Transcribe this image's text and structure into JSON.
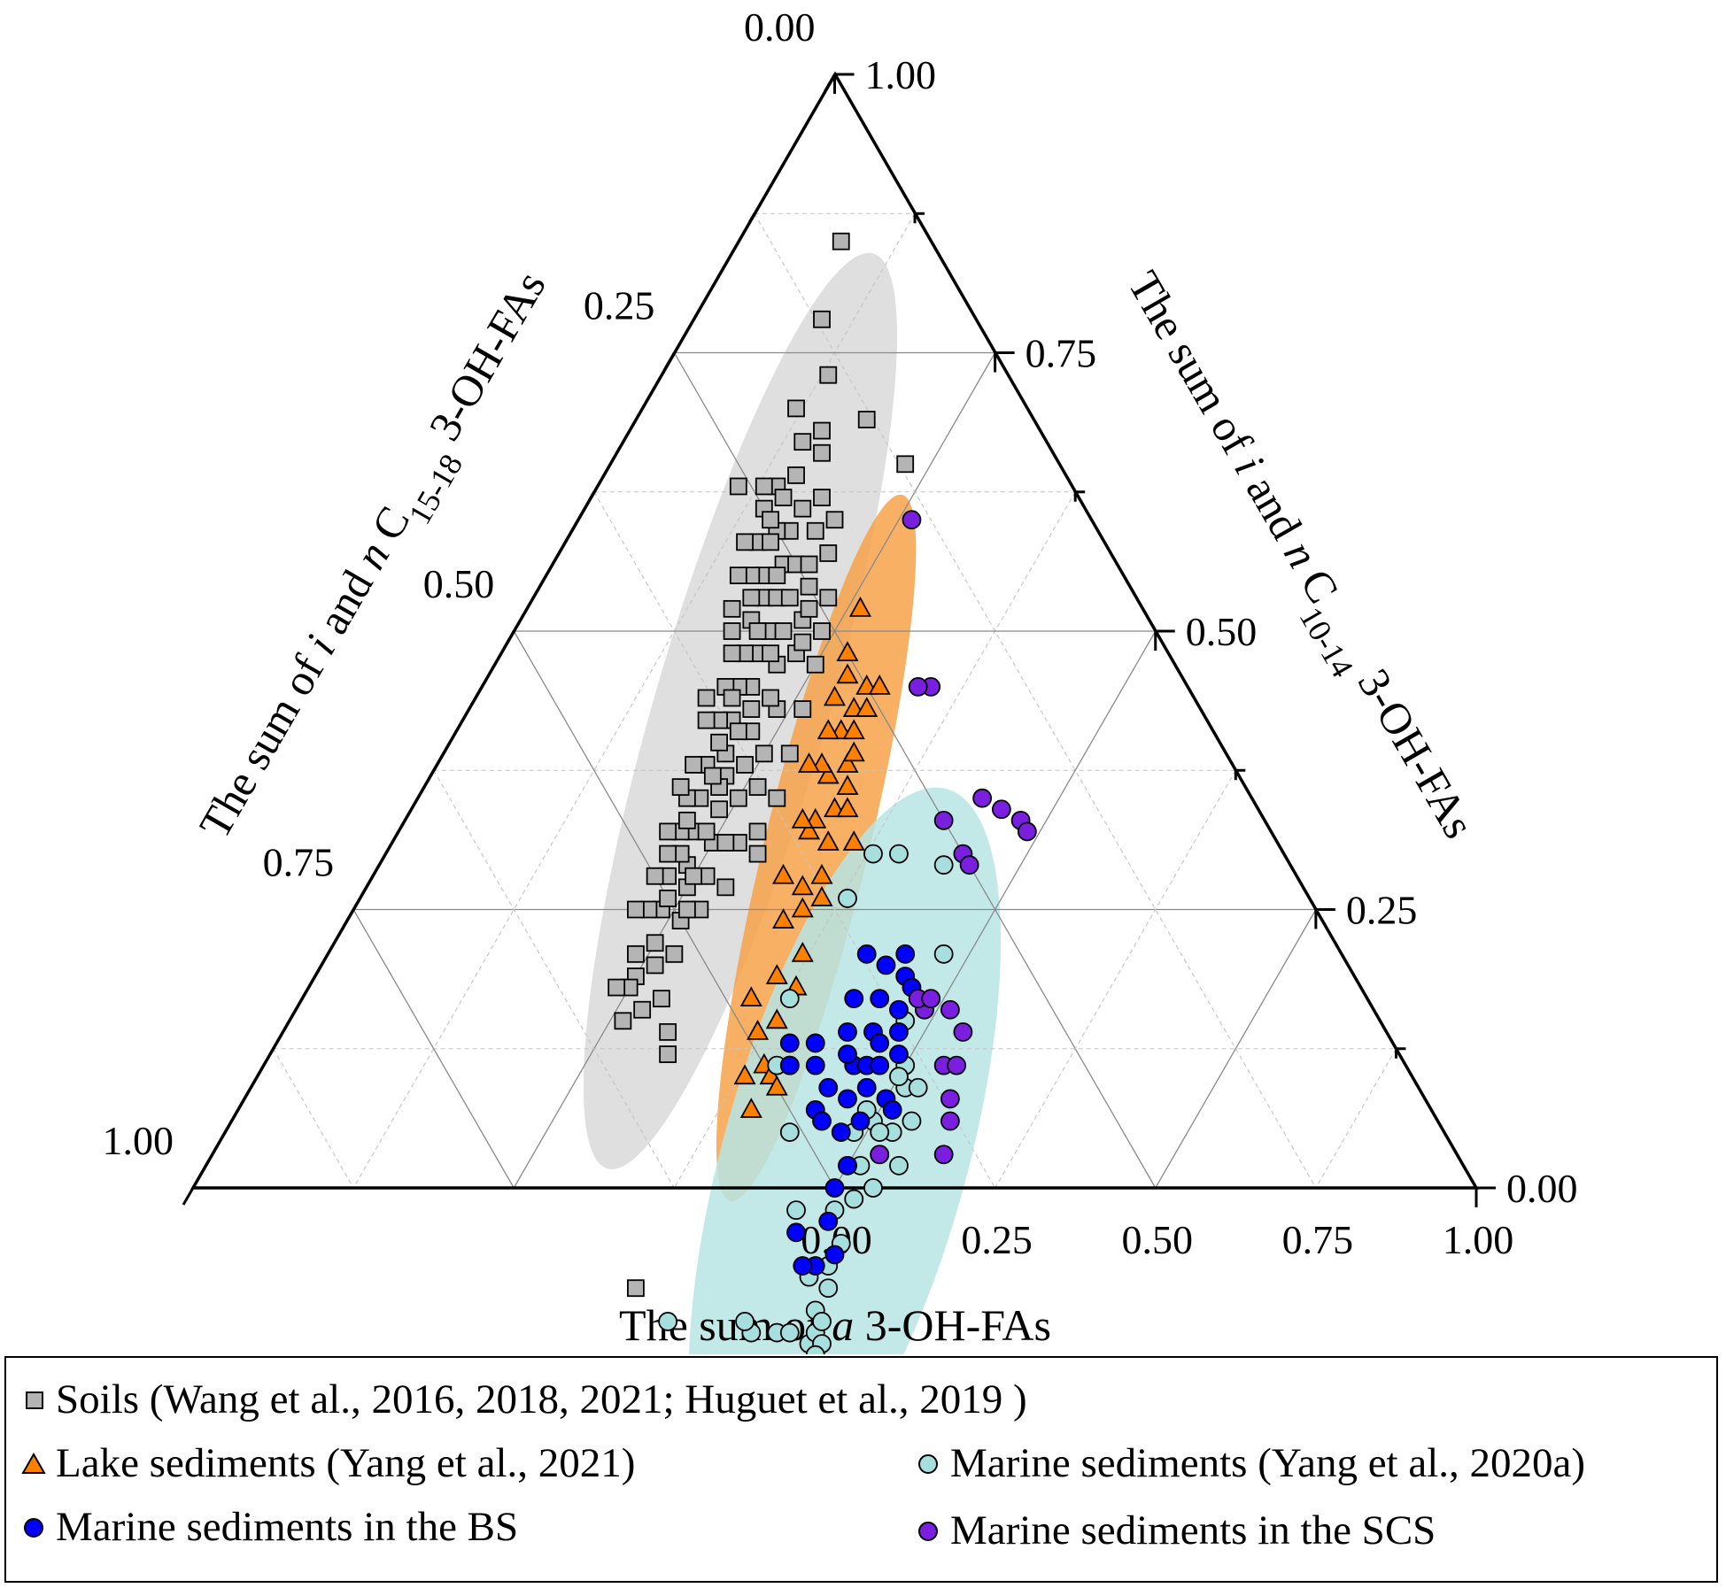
{
  "chart_data": {
    "type": "scatter",
    "subtype": "ternary",
    "axes": {
      "bottom": {
        "label_parts": [
          {
            "t": "The sum of "
          },
          {
            "t": "a",
            "style": "italic"
          },
          {
            "t": " 3-OH-FAs"
          }
        ],
        "ticks": [
          "0.00",
          "0.25",
          "0.50",
          "0.75",
          "1.00"
        ],
        "range": [
          0,
          1
        ]
      },
      "left": {
        "label_parts": [
          {
            "t": "The sum of "
          },
          {
            "t": "i",
            "style": "italic"
          },
          {
            "t": " and "
          },
          {
            "t": "n",
            "style": "italic"
          },
          {
            "t": " C"
          },
          {
            "t": "15-18",
            "style": "sub"
          },
          {
            "t": " 3-OH-FAs"
          }
        ],
        "ticks": [
          "0.00",
          "0.25",
          "0.50",
          "0.75",
          "1.00"
        ],
        "range": [
          0,
          1
        ]
      },
      "right": {
        "label_parts": [
          {
            "t": "The sum of "
          },
          {
            "t": "i",
            "style": "italic"
          },
          {
            "t": " and "
          },
          {
            "t": "n",
            "style": "italic"
          },
          {
            "t": " C"
          },
          {
            "t": "10-14",
            "style": "sub"
          },
          {
            "t": " 3-OH-FAs"
          }
        ],
        "ticks": [
          "0.00",
          "0.25",
          "0.50",
          "0.75",
          "1.00"
        ],
        "range": [
          0,
          1
        ]
      }
    },
    "grid": true,
    "legend_position": "bottom",
    "series": [
      {
        "name": "Soils (Wang et al., 2016, 2018, 2021; Huguet et al., 2019 )",
        "marker": "square",
        "color": "#b4b4b4",
        "ellipse_color": "#d9d9d9",
        "points": [
          [
            0.08,
            0.07
          ],
          [
            0.13,
            0.14
          ],
          [
            0.16,
            0.18
          ],
          [
            0.15,
            0.21
          ],
          [
            0.14,
            0.23
          ],
          [
            0.14,
            0.25
          ],
          [
            0.17,
            0.24
          ],
          [
            0.18,
            0.26
          ],
          [
            0.19,
            0.25
          ],
          [
            0.17,
            0.28
          ],
          [
            0.15,
            0.27
          ],
          [
            0.18,
            0.29
          ],
          [
            0.19,
            0.28
          ],
          [
            0.2,
            0.3
          ],
          [
            0.21,
            0.29
          ],
          [
            0.18,
            0.31
          ],
          [
            0.16,
            0.29
          ],
          [
            0.17,
            0.3
          ],
          [
            0.2,
            0.32
          ],
          [
            0.22,
            0.31
          ],
          [
            0.19,
            0.33
          ],
          [
            0.21,
            0.34
          ],
          [
            0.18,
            0.34
          ],
          [
            0.2,
            0.35
          ],
          [
            0.22,
            0.35
          ],
          [
            0.19,
            0.36
          ],
          [
            0.21,
            0.37
          ],
          [
            0.23,
            0.36
          ],
          [
            0.2,
            0.38
          ],
          [
            0.22,
            0.39
          ],
          [
            0.19,
            0.39
          ],
          [
            0.21,
            0.41
          ],
          [
            0.23,
            0.4
          ],
          [
            0.2,
            0.42
          ],
          [
            0.22,
            0.43
          ],
          [
            0.24,
            0.42
          ],
          [
            0.21,
            0.44
          ],
          [
            0.23,
            0.45
          ],
          [
            0.25,
            0.44
          ],
          [
            0.22,
            0.46
          ],
          [
            0.24,
            0.47
          ],
          [
            0.21,
            0.47
          ],
          [
            0.23,
            0.49
          ],
          [
            0.25,
            0.48
          ],
          [
            0.22,
            0.5
          ],
          [
            0.24,
            0.51
          ],
          [
            0.26,
            0.5
          ],
          [
            0.23,
            0.52
          ],
          [
            0.25,
            0.53
          ],
          [
            0.22,
            0.53
          ],
          [
            0.24,
            0.55
          ],
          [
            0.26,
            0.54
          ],
          [
            0.25,
            0.56
          ],
          [
            0.27,
            0.52
          ],
          [
            0.27,
            0.48
          ],
          [
            0.26,
            0.46
          ],
          [
            0.28,
            0.45
          ],
          [
            0.27,
            0.42
          ],
          [
            0.29,
            0.41
          ],
          [
            0.28,
            0.4
          ],
          [
            0.26,
            0.38
          ],
          [
            0.28,
            0.37
          ],
          [
            0.25,
            0.36
          ],
          [
            0.27,
            0.34
          ],
          [
            0.24,
            0.33
          ],
          [
            0.26,
            0.31
          ],
          [
            0.23,
            0.29
          ],
          [
            0.25,
            0.28
          ],
          [
            0.22,
            0.27
          ],
          [
            0.24,
            0.26
          ],
          [
            0.21,
            0.25
          ],
          [
            0.23,
            0.24
          ],
          [
            0.19,
            0.22
          ],
          [
            0.21,
            0.22
          ],
          [
            0.18,
            0.2
          ],
          [
            0.2,
            0.2
          ],
          [
            0.17,
            0.22
          ],
          [
            0.2,
            0.24
          ],
          [
            0.22,
            0.26
          ],
          [
            0.23,
            0.28
          ],
          [
            0.2,
            0.27
          ],
          [
            0.21,
            0.31
          ],
          [
            0.23,
            0.33
          ],
          [
            0.22,
            0.37
          ],
          [
            0.24,
            0.38
          ],
          [
            0.23,
            0.41
          ],
          [
            0.25,
            0.4
          ],
          [
            0.24,
            0.44
          ],
          [
            0.26,
            0.43
          ],
          [
            0.25,
            0.47
          ],
          [
            0.26,
            0.49
          ],
          [
            0.24,
            0.5
          ],
          [
            0.23,
            0.47
          ],
          [
            0.22,
            0.41
          ],
          [
            0.21,
            0.39
          ],
          [
            0.2,
            0.36
          ],
          [
            0.19,
            0.31
          ],
          [
            0.18,
            0.27
          ],
          [
            0.16,
            0.25
          ],
          [
            0.15,
            0.23
          ],
          [
            0.28,
            0.55
          ],
          [
            0.3,
            0.56
          ],
          [
            0.31,
            0.57
          ],
          [
            0.39,
            0.7
          ],
          [
            0.25,
            0.57
          ],
          [
            0.27,
            0.57
          ],
          [
            0.24,
            0.58
          ],
          [
            0.26,
            0.59
          ],
          [
            0.22,
            0.45
          ],
          [
            0.22,
            0.48
          ],
          [
            0.2,
            0.44
          ],
          [
            0.18,
            0.38
          ],
          [
            0.17,
            0.33
          ],
          [
            0.16,
            0.32
          ],
          [
            0.15,
            0.3
          ],
          [
            0.14,
            0.28
          ],
          [
            0.16,
            0.26
          ],
          [
            0.15,
            0.25
          ],
          [
            0.13,
            0.24
          ],
          [
            0.14,
            0.19
          ],
          [
            0.12,
            0.18
          ],
          [
            0.15,
            0.17
          ],
          [
            0.18,
            0.13
          ],
          [
            0.23,
            0.12
          ],
          [
            0.11,
            0.26
          ],
          [
            0.1,
            0.12
          ]
        ]
      },
      {
        "name": "Lake sediments (Yang et al., 2021)",
        "marker": "triangle",
        "color": "#ff7f00",
        "ellipse_color": "#f7a24a",
        "points": [
          [
            0.26,
            0.22
          ],
          [
            0.27,
            0.25
          ],
          [
            0.28,
            0.26
          ],
          [
            0.3,
            0.27
          ],
          [
            0.28,
            0.28
          ],
          [
            0.3,
            0.29
          ],
          [
            0.32,
            0.3
          ],
          [
            0.31,
            0.32
          ],
          [
            0.33,
            0.33
          ],
          [
            0.32,
            0.29
          ],
          [
            0.3,
            0.32
          ],
          [
            0.29,
            0.3
          ],
          [
            0.31,
            0.28
          ],
          [
            0.33,
            0.31
          ],
          [
            0.34,
            0.35
          ],
          [
            0.32,
            0.36
          ],
          [
            0.35,
            0.37
          ],
          [
            0.34,
            0.39
          ],
          [
            0.36,
            0.38
          ],
          [
            0.35,
            0.4
          ],
          [
            0.37,
            0.42
          ],
          [
            0.38,
            0.44
          ],
          [
            0.36,
            0.45
          ],
          [
            0.38,
            0.47
          ],
          [
            0.37,
            0.49
          ],
          [
            0.35,
            0.48
          ],
          [
            0.39,
            0.5
          ],
          [
            0.4,
            0.5
          ],
          [
            0.41,
            0.5
          ],
          [
            0.38,
            0.52
          ],
          [
            0.4,
            0.53
          ],
          [
            0.36,
            0.33
          ],
          [
            0.34,
            0.32
          ],
          [
            0.3,
            0.25
          ],
          [
            0.31,
            0.26
          ],
          [
            0.31,
            0.24
          ],
          [
            0.32,
            0.35
          ],
          [
            0.31,
            0.36
          ],
          [
            0.29,
            0.33
          ],
          [
            0.32,
            0.4
          ],
          [
            0.34,
            0.42
          ]
        ]
      },
      {
        "name": "Marine sediments (Yang et al., 2020a)",
        "marker": "circle",
        "color": "#a7dede",
        "ellipse_color": "#b7e4e4",
        "points": [
          [
            0.43,
            0.69
          ],
          [
            0.52,
            0.56
          ],
          [
            0.5,
            0.63
          ],
          [
            0.49,
            0.63
          ],
          [
            0.52,
            0.61
          ],
          [
            0.53,
            0.6
          ],
          [
            0.55,
            0.59
          ],
          [
            0.55,
            0.58
          ],
          [
            0.54,
            0.57
          ],
          [
            0.48,
            0.54
          ],
          [
            0.44,
            0.51
          ],
          [
            0.4,
            0.49
          ],
          [
            0.41,
            0.48
          ],
          [
            0.38,
            0.45
          ],
          [
            0.38,
            0.36
          ],
          [
            0.38,
            0.32
          ],
          [
            0.4,
            0.3
          ],
          [
            0.44,
            0.27
          ],
          [
            0.48,
            0.31
          ],
          [
            0.49,
            0.35
          ],
          [
            0.48,
            0.37
          ],
          [
            0.5,
            0.39
          ],
          [
            0.51,
            0.4
          ],
          [
            0.52,
            0.43
          ],
          [
            0.5,
            0.44
          ],
          [
            0.49,
            0.46
          ],
          [
            0.51,
            0.47
          ],
          [
            0.52,
            0.49
          ],
          [
            0.5,
            0.48
          ],
          [
            0.51,
            0.51
          ],
          [
            0.53,
            0.52
          ],
          [
            0.53,
            0.54
          ],
          [
            0.54,
            0.55
          ],
          [
            0.55,
            0.57
          ],
          [
            0.56,
            0.58
          ],
          [
            0.56,
            0.59
          ],
          [
            0.49,
            0.44
          ],
          [
            0.5,
            0.4
          ],
          [
            0.52,
            0.39
          ],
          [
            0.53,
            0.41
          ],
          [
            0.53,
            0.47
          ],
          [
            0.54,
            0.44
          ],
          [
            0.51,
            0.44
          ],
          [
            0.52,
            0.45
          ]
        ]
      },
      {
        "name": "Marine sediments in the BS",
        "marker": "circle",
        "color": "#0000ff",
        "ellipse_color": "",
        "points": [
          [
            0.4,
            0.47
          ],
          [
            0.41,
            0.48
          ],
          [
            0.42,
            0.45
          ],
          [
            0.43,
            0.46
          ],
          [
            0.45,
            0.48
          ],
          [
            0.46,
            0.48
          ],
          [
            0.45,
            0.46
          ],
          [
            0.47,
            0.45
          ],
          [
            0.46,
            0.43
          ],
          [
            0.48,
            0.43
          ],
          [
            0.44,
            0.42
          ],
          [
            0.45,
            0.43
          ],
          [
            0.47,
            0.42
          ],
          [
            0.43,
            0.4
          ],
          [
            0.46,
            0.4
          ],
          [
            0.47,
            0.4
          ],
          [
            0.48,
            0.41
          ],
          [
            0.45,
            0.38
          ],
          [
            0.47,
            0.37
          ],
          [
            0.44,
            0.36
          ],
          [
            0.46,
            0.35
          ],
          [
            0.45,
            0.34
          ],
          [
            0.47,
            0.35
          ],
          [
            0.42,
            0.37
          ],
          [
            0.48,
            0.38
          ],
          [
            0.49,
            0.39
          ],
          [
            0.5,
            0.42
          ],
          [
            0.51,
            0.42
          ],
          [
            0.49,
            0.45
          ],
          [
            0.48,
            0.47
          ],
          [
            0.5,
            0.48
          ],
          [
            0.5,
            0.5
          ],
          [
            0.51,
            0.52
          ],
          [
            0.53,
            0.53
          ],
          [
            0.52,
            0.55
          ],
          [
            0.49,
            0.55
          ],
          [
            0.51,
            0.56
          ]
        ]
      },
      {
        "name": "Marine sediments in the SCS",
        "marker": "circle",
        "color": "#7a1fe0",
        "ellipse_color": "",
        "points": [
          [
            0.52,
            0.45
          ],
          [
            0.49,
            0.35
          ],
          [
            0.48,
            0.35
          ],
          [
            0.49,
            0.34
          ],
          [
            0.51,
            0.33
          ],
          [
            0.53,
            0.33
          ],
          [
            0.53,
            0.36
          ],
          [
            0.54,
            0.35
          ],
          [
            0.55,
            0.37
          ],
          [
            0.56,
            0.38
          ],
          [
            0.57,
            0.4
          ],
          [
            0.42,
            0.25
          ],
          [
            0.45,
            0.25
          ],
          [
            0.46,
            0.25
          ],
          [
            0.44,
            0.21
          ],
          [
            0.46,
            0.2
          ],
          [
            0.48,
            0.19
          ],
          [
            0.49,
            0.19
          ],
          [
            0.35,
            0.2
          ],
          [
            0.34,
            0.21
          ],
          [
            0.26,
            0.14
          ]
        ]
      }
    ]
  },
  "legend": {
    "items": [
      {
        "label": "Soils (Wang et al., 2016, 2018, 2021; Huguet et al., 2019 )"
      },
      {
        "label": "Lake sediments (Yang et al., 2021)"
      },
      {
        "label": "Marine sediments (Yang et al., 2020a)"
      },
      {
        "label": "Marine sediments in the BS"
      },
      {
        "label": "Marine sediments in the SCS"
      }
    ]
  }
}
